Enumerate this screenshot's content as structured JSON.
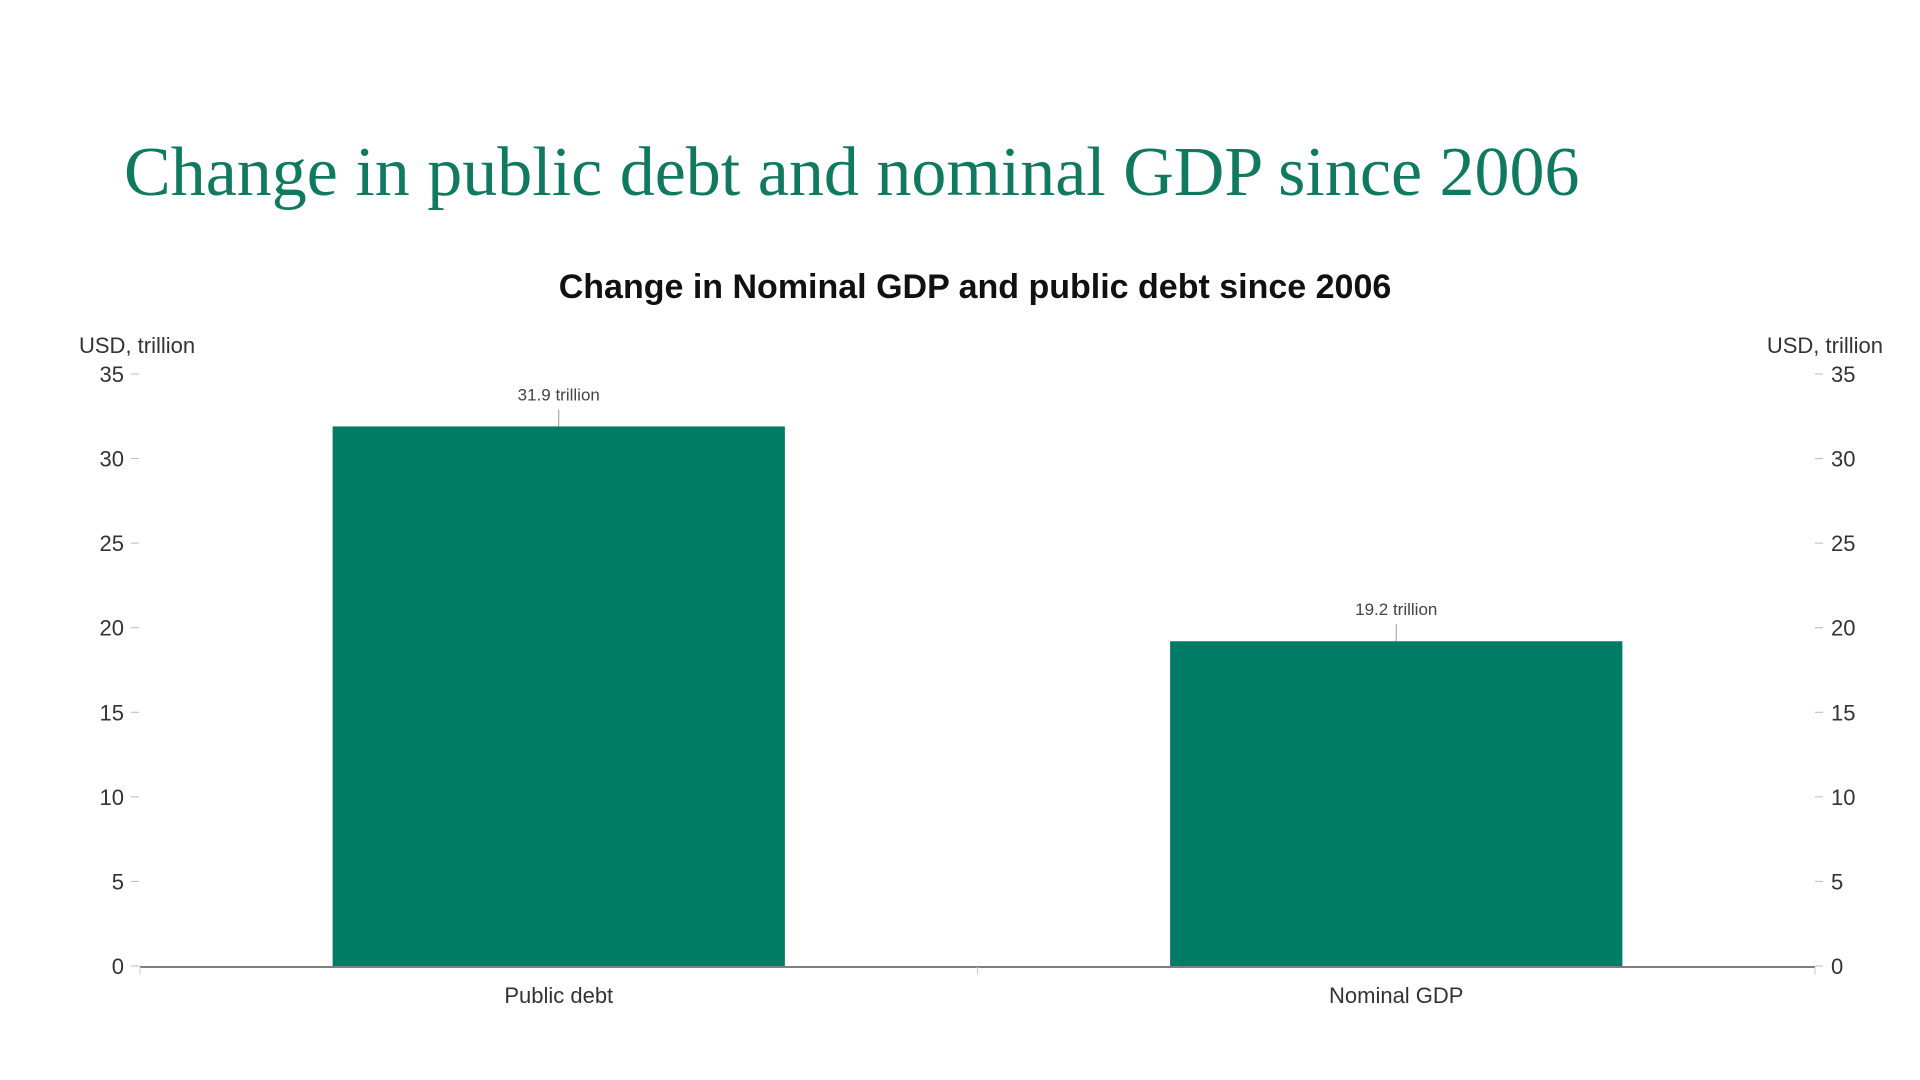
{
  "slide": {
    "title": "Change in public debt and nominal GDP since 2006"
  },
  "chart_data": {
    "type": "bar",
    "title": "Change in Nominal GDP and public debt since 2006",
    "categories": [
      "Public debt",
      "Nominal GDP"
    ],
    "values": [
      31.9,
      19.2
    ],
    "data_labels": [
      "31.9 trillion",
      "19.2 trillion"
    ],
    "ylabel_left": "USD, trillion",
    "ylabel_right": "USD, trillion",
    "ylim": [
      0,
      35
    ],
    "yticks": [
      0,
      5,
      10,
      15,
      20,
      25,
      30,
      35
    ],
    "bar_color": "#007c66",
    "grid": false,
    "legend": "none"
  }
}
